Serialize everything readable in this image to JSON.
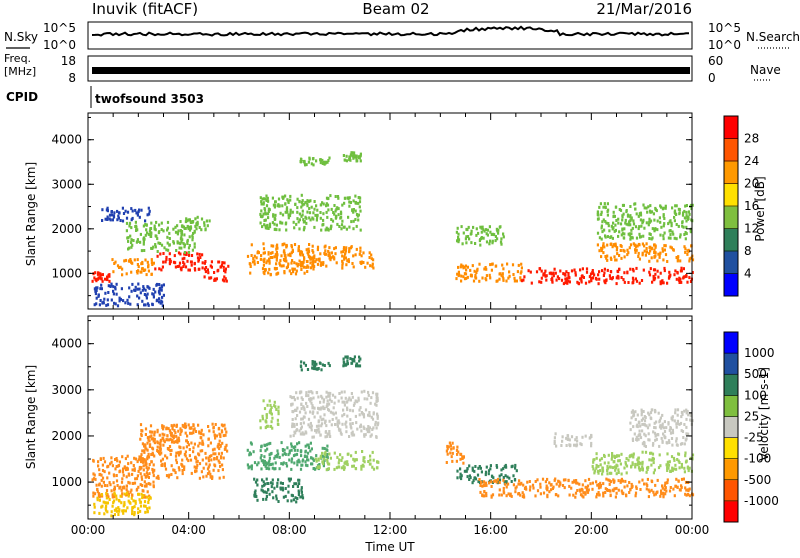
{
  "header": {
    "station": "Inuvik (fitACF)",
    "beam": "Beam 02",
    "date": "21/Mar/2016"
  },
  "strip_labels": {
    "nsky": "N.Sky",
    "nsearch": "N.Search",
    "freq_line1": "Freq.",
    "freq_line2": "[MHz]",
    "nave": "Nave",
    "cpid": "CPID",
    "cpid_value": "twofsound 3503"
  },
  "strip_ticks": {
    "noise_left": [
      "10^5",
      "10^0"
    ],
    "noise_right": [
      "10^5",
      "10^0"
    ],
    "freq_left": [
      "18",
      "8"
    ],
    "nave_right": [
      "60",
      "0"
    ]
  },
  "chart_data": [
    {
      "type": "heatmap",
      "name": "power",
      "ylabel": "Slant Range [km]",
      "xlabel": "",
      "x_ticks": [
        "00:00",
        "04:00",
        "08:00",
        "12:00",
        "16:00",
        "20:00",
        "00:00"
      ],
      "y_ticks": [
        1000,
        2000,
        3000,
        4000
      ],
      "xlim_hours": [
        0,
        24
      ],
      "ylim_km": [
        200,
        4600
      ],
      "colorbar": {
        "label": "Power [dB]",
        "ticks": [
          "28",
          "24",
          "20",
          "16",
          "12",
          "8",
          "4"
        ],
        "colors": [
          "#0000ff",
          "#2050a0",
          "#2f7f5a",
          "#7fbf3f",
          "#ffe000",
          "#ff9900",
          "#ff5500",
          "#ff0000"
        ]
      },
      "bands": [
        {
          "t": [
            0.1,
            0.9
          ],
          "r": [
            850,
            1050
          ],
          "v": "red"
        },
        {
          "t": [
            0.9,
            2.6
          ],
          "r": [
            1000,
            1350
          ],
          "v": "orange"
        },
        {
          "t": [
            2.6,
            4.5
          ],
          "r": [
            1100,
            1500
          ],
          "v": "red"
        },
        {
          "t": [
            4.5,
            5.6
          ],
          "r": [
            850,
            1300
          ],
          "v": "red"
        },
        {
          "t": [
            1.5,
            4.2
          ],
          "r": [
            1500,
            2200
          ],
          "v": "green"
        },
        {
          "t": [
            3.8,
            4.8
          ],
          "r": [
            2000,
            2300
          ],
          "v": "green"
        },
        {
          "t": [
            6.3,
            9.0
          ],
          "r": [
            1000,
            1700
          ],
          "v": "orange"
        },
        {
          "t": [
            8.3,
            11.3
          ],
          "r": [
            1150,
            1650
          ],
          "v": "orange"
        },
        {
          "t": [
            6.8,
            10.8
          ],
          "r": [
            2000,
            2800
          ],
          "v": "green"
        },
        {
          "t": [
            8.4,
            9.6
          ],
          "r": [
            3450,
            3650
          ],
          "v": "green"
        },
        {
          "t": [
            10.1,
            10.8
          ],
          "r": [
            3550,
            3750
          ],
          "v": "green"
        },
        {
          "t": [
            14.6,
            17.2
          ],
          "r": [
            850,
            1250
          ],
          "v": "orange"
        },
        {
          "t": [
            17.2,
            24.0
          ],
          "r": [
            800,
            1150
          ],
          "v": "red"
        },
        {
          "t": [
            14.6,
            16.5
          ],
          "r": [
            1650,
            2100
          ],
          "v": "green"
        },
        {
          "t": [
            20.2,
            24.0
          ],
          "r": [
            1300,
            1700
          ],
          "v": "orange"
        },
        {
          "t": [
            20.2,
            24.0
          ],
          "r": [
            1800,
            2600
          ],
          "v": "green"
        },
        {
          "t": [
            0.2,
            3.0
          ],
          "r": [
            300,
            800
          ],
          "v": "blue"
        },
        {
          "t": [
            0.5,
            2.5
          ],
          "r": [
            2200,
            2500
          ],
          "v": "blue"
        }
      ]
    },
    {
      "type": "heatmap",
      "name": "velocity",
      "ylabel": "Slant Range [km]",
      "xlabel": "Time UT",
      "x_ticks": [
        "00:00",
        "04:00",
        "08:00",
        "12:00",
        "16:00",
        "20:00",
        "00:00"
      ],
      "y_ticks": [
        1000,
        2000,
        3000,
        4000
      ],
      "xlim_hours": [
        0,
        24
      ],
      "ylim_km": [
        200,
        4600
      ],
      "colorbar": {
        "label": "Velocity [m s-1]",
        "ticks": [
          "1000",
          "500",
          "100",
          "25",
          "-25",
          "-100",
          "-500",
          "-1000"
        ],
        "colors": [
          "#ff0000",
          "#ff5500",
          "#ff9900",
          "#ffe000",
          "#c8c8c0",
          "#7fbf3f",
          "#2f7f5a",
          "#2050a0",
          "#0000ff"
        ]
      },
      "bands": [
        {
          "t": [
            0.1,
            2.6
          ],
          "r": [
            700,
            1600
          ],
          "v": "orange"
        },
        {
          "t": [
            2.0,
            5.5
          ],
          "r": [
            1100,
            2300
          ],
          "v": "orange"
        },
        {
          "t": [
            0.2,
            2.5
          ],
          "r": [
            300,
            800
          ],
          "v": "yellow"
        },
        {
          "t": [
            6.3,
            9.5
          ],
          "r": [
            1300,
            1900
          ],
          "v": "green"
        },
        {
          "t": [
            6.5,
            8.5
          ],
          "r": [
            600,
            1100
          ],
          "v": "darkgreen"
        },
        {
          "t": [
            9.0,
            11.5
          ],
          "r": [
            1300,
            1700
          ],
          "v": "lightgreen"
        },
        {
          "t": [
            6.8,
            7.6
          ],
          "r": [
            2200,
            2800
          ],
          "v": "lightgreen"
        },
        {
          "t": [
            8.0,
            11.5
          ],
          "r": [
            2000,
            3000
          ],
          "v": "gray"
        },
        {
          "t": [
            8.4,
            9.6
          ],
          "r": [
            3450,
            3650
          ],
          "v": "darkgreen"
        },
        {
          "t": [
            10.1,
            10.8
          ],
          "r": [
            3550,
            3750
          ],
          "v": "darkgreen"
        },
        {
          "t": [
            14.6,
            17.0
          ],
          "r": [
            1000,
            1400
          ],
          "v": "darkgreen"
        },
        {
          "t": [
            14.2,
            14.9
          ],
          "r": [
            1400,
            1900
          ],
          "v": "orange"
        },
        {
          "t": [
            15.5,
            24.0
          ],
          "r": [
            700,
            1100
          ],
          "v": "orange"
        },
        {
          "t": [
            20.0,
            24.0
          ],
          "r": [
            1200,
            1700
          ],
          "v": "lightgreen"
        },
        {
          "t": [
            21.5,
            24.0
          ],
          "r": [
            1800,
            2600
          ],
          "v": "gray"
        },
        {
          "t": [
            18.5,
            20.0
          ],
          "r": [
            1800,
            2100
          ],
          "v": "gray"
        }
      ]
    }
  ]
}
